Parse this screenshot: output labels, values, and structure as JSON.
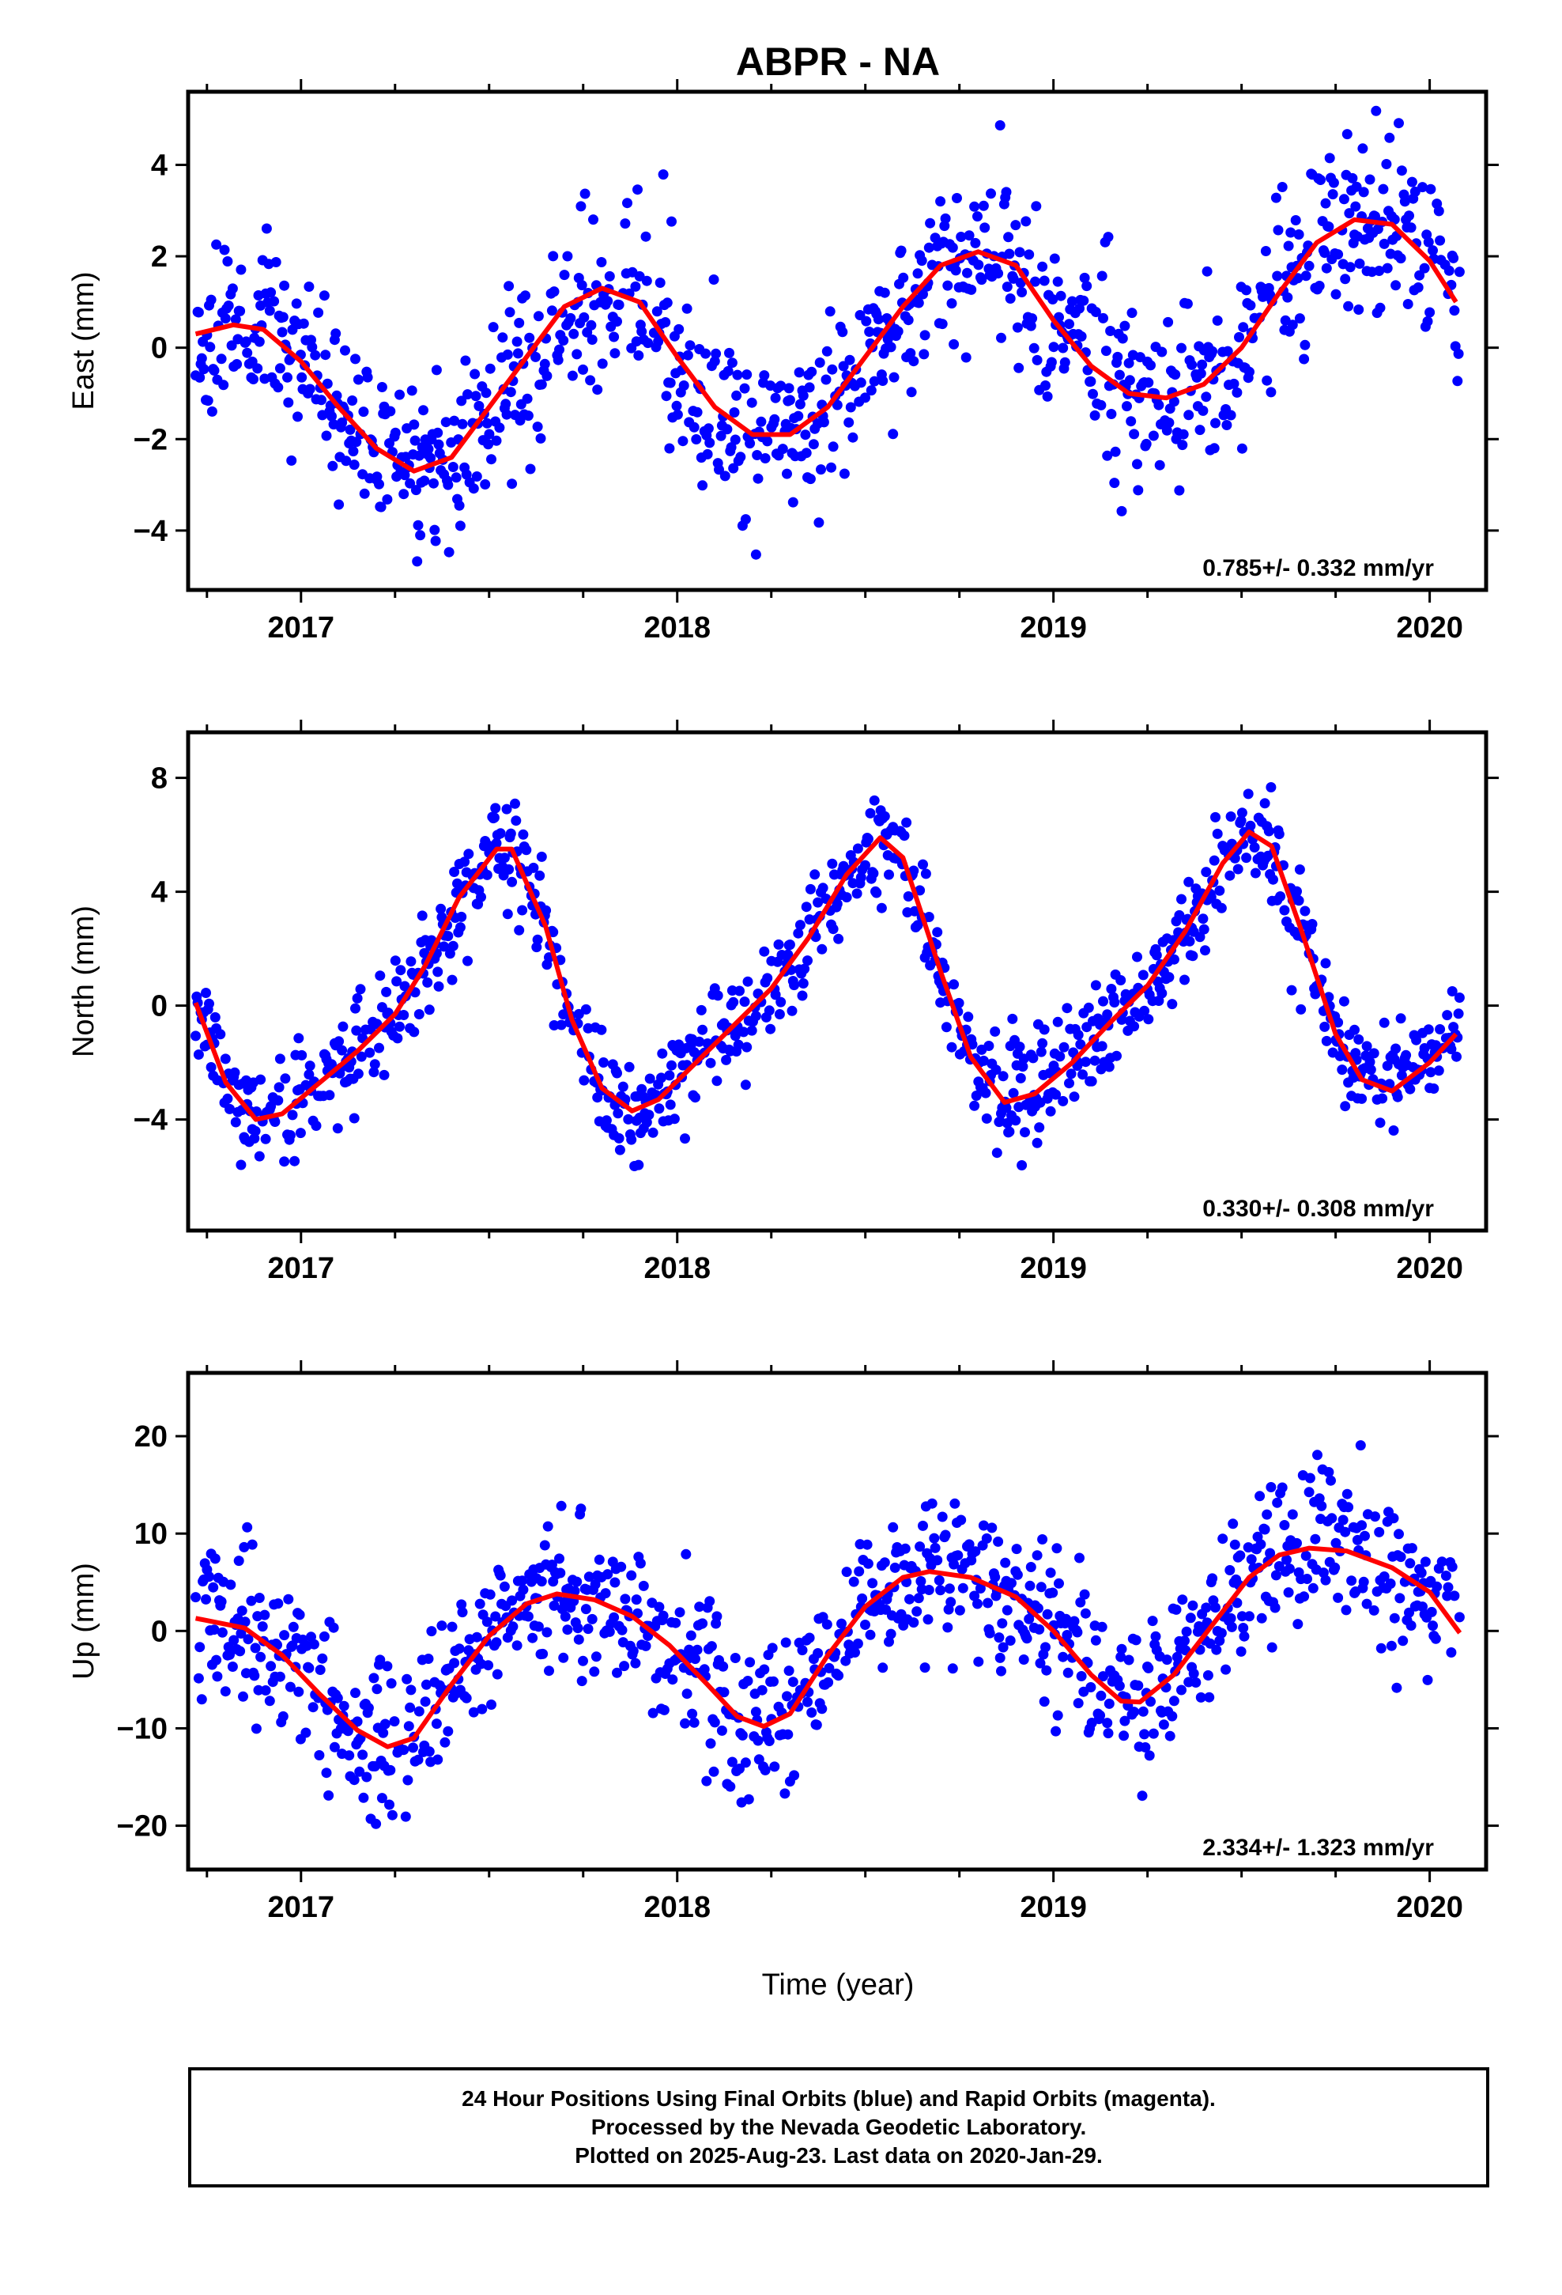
{
  "title": "ABPR - NA",
  "colors": {
    "points": "#0000ff",
    "model": "#ff0000",
    "frame": "#000000"
  },
  "xlabel": "Time (year)",
  "footer": {
    "line1": "24 Hour Positions Using Final Orbits (blue) and Rapid Orbits (magenta).",
    "line2": "Processed by the Nevada Geodetic Laboratory.",
    "line3": "Plotted on 2025-Aug-23. Last data on 2020-Jan-29."
  },
  "chart_data": [
    {
      "type": "scatter",
      "name": "east",
      "ylabel": "East (mm)",
      "xlim": [
        2016.7,
        2020.15
      ],
      "ylim": [
        -5.3,
        5.6
      ],
      "xticks": [
        2017,
        2018,
        2019,
        2020
      ],
      "yticks": [
        -4,
        -2,
        0,
        2,
        4
      ],
      "rate": "0.785+/- 0.332 mm/yr",
      "data_start": 2016.72,
      "data_end": 2020.08,
      "scatter_sigma": 0.95,
      "seed": 11,
      "model": [
        [
          2016.72,
          0.3
        ],
        [
          2016.82,
          0.5
        ],
        [
          2016.9,
          0.4
        ],
        [
          2017.0,
          -0.3
        ],
        [
          2017.1,
          -1.3
        ],
        [
          2017.2,
          -2.2
        ],
        [
          2017.3,
          -2.7
        ],
        [
          2017.4,
          -2.4
        ],
        [
          2017.5,
          -1.3
        ],
        [
          2017.6,
          -0.2
        ],
        [
          2017.7,
          0.9
        ],
        [
          2017.8,
          1.3
        ],
        [
          2017.9,
          1.0
        ],
        [
          2018.0,
          -0.2
        ],
        [
          2018.1,
          -1.3
        ],
        [
          2018.2,
          -1.9
        ],
        [
          2018.3,
          -1.9
        ],
        [
          2018.4,
          -1.3
        ],
        [
          2018.5,
          -0.2
        ],
        [
          2018.6,
          0.9
        ],
        [
          2018.7,
          1.8
        ],
        [
          2018.8,
          2.1
        ],
        [
          2018.9,
          1.8
        ],
        [
          2019.0,
          0.6
        ],
        [
          2019.1,
          -0.4
        ],
        [
          2019.2,
          -1.0
        ],
        [
          2019.3,
          -1.1
        ],
        [
          2019.4,
          -0.8
        ],
        [
          2019.5,
          0.0
        ],
        [
          2019.6,
          1.2
        ],
        [
          2019.7,
          2.3
        ],
        [
          2019.8,
          2.8
        ],
        [
          2019.9,
          2.7
        ],
        [
          2020.0,
          1.9
        ],
        [
          2020.07,
          1.0
        ]
      ]
    },
    {
      "type": "scatter",
      "name": "north",
      "ylabel": "North (mm)",
      "xlim": [
        2016.7,
        2020.15
      ],
      "ylim": [
        -7.9,
        9.6
      ],
      "xticks": [
        2017,
        2018,
        2019,
        2020
      ],
      "yticks": [
        -4,
        0,
        4,
        8
      ],
      "rate": "0.330+/- 0.308 mm/yr",
      "data_start": 2016.72,
      "data_end": 2020.08,
      "scatter_sigma": 0.9,
      "seed": 23,
      "model": [
        [
          2016.72,
          0.1
        ],
        [
          2016.8,
          -2.7
        ],
        [
          2016.88,
          -4.0
        ],
        [
          2016.95,
          -3.8
        ],
        [
          2017.05,
          -2.7
        ],
        [
          2017.15,
          -1.6
        ],
        [
          2017.25,
          -0.3
        ],
        [
          2017.33,
          1.4
        ],
        [
          2017.42,
          3.8
        ],
        [
          2017.52,
          5.5
        ],
        [
          2017.56,
          5.5
        ],
        [
          2017.65,
          2.8
        ],
        [
          2017.72,
          -0.5
        ],
        [
          2017.8,
          -2.9
        ],
        [
          2017.88,
          -3.7
        ],
        [
          2017.95,
          -3.3
        ],
        [
          2018.05,
          -2.0
        ],
        [
          2018.15,
          -0.7
        ],
        [
          2018.25,
          0.6
        ],
        [
          2018.35,
          2.4
        ],
        [
          2018.45,
          4.6
        ],
        [
          2018.54,
          5.9
        ],
        [
          2018.6,
          5.2
        ],
        [
          2018.7,
          1.2
        ],
        [
          2018.78,
          -1.8
        ],
        [
          2018.87,
          -3.4
        ],
        [
          2018.95,
          -3.1
        ],
        [
          2019.05,
          -2.0
        ],
        [
          2019.15,
          -0.6
        ],
        [
          2019.25,
          0.7
        ],
        [
          2019.35,
          2.6
        ],
        [
          2019.45,
          5.0
        ],
        [
          2019.52,
          6.1
        ],
        [
          2019.58,
          5.6
        ],
        [
          2019.66,
          2.6
        ],
        [
          2019.75,
          -1.0
        ],
        [
          2019.82,
          -2.6
        ],
        [
          2019.9,
          -3.0
        ],
        [
          2020.0,
          -2.0
        ],
        [
          2020.07,
          -1.0
        ]
      ]
    },
    {
      "type": "scatter",
      "name": "up",
      "ylabel": "Up (mm)",
      "xlim": [
        2016.7,
        2020.15
      ],
      "ylim": [
        -24.5,
        26.5
      ],
      "xticks": [
        2017,
        2018,
        2019,
        2020
      ],
      "yticks": [
        -20,
        -10,
        0,
        10,
        20
      ],
      "rate": "2.334+/- 1.323 mm/yr",
      "data_start": 2016.72,
      "data_end": 2020.08,
      "scatter_sigma": 4.0,
      "seed": 37,
      "model": [
        [
          2016.72,
          1.3
        ],
        [
          2016.85,
          0.3
        ],
        [
          2016.95,
          -2.5
        ],
        [
          2017.05,
          -6.5
        ],
        [
          2017.15,
          -10.2
        ],
        [
          2017.23,
          -11.9
        ],
        [
          2017.3,
          -11.0
        ],
        [
          2017.4,
          -5.5
        ],
        [
          2017.5,
          -0.5
        ],
        [
          2017.6,
          2.8
        ],
        [
          2017.68,
          3.8
        ],
        [
          2017.78,
          3.2
        ],
        [
          2017.88,
          1.5
        ],
        [
          2017.98,
          -1.5
        ],
        [
          2018.08,
          -5.5
        ],
        [
          2018.16,
          -8.8
        ],
        [
          2018.23,
          -9.8
        ],
        [
          2018.3,
          -8.5
        ],
        [
          2018.4,
          -2.5
        ],
        [
          2018.5,
          2.5
        ],
        [
          2018.6,
          5.5
        ],
        [
          2018.67,
          6.1
        ],
        [
          2018.78,
          5.5
        ],
        [
          2018.9,
          3.5
        ],
        [
          2019.0,
          0.0
        ],
        [
          2019.1,
          -4.5
        ],
        [
          2019.18,
          -7.2
        ],
        [
          2019.23,
          -7.3
        ],
        [
          2019.32,
          -4.5
        ],
        [
          2019.42,
          0.5
        ],
        [
          2019.52,
          5.5
        ],
        [
          2019.6,
          7.8
        ],
        [
          2019.68,
          8.5
        ],
        [
          2019.78,
          8.2
        ],
        [
          2019.9,
          6.5
        ],
        [
          2020.0,
          4.0
        ],
        [
          2020.08,
          -0.2
        ]
      ]
    }
  ]
}
